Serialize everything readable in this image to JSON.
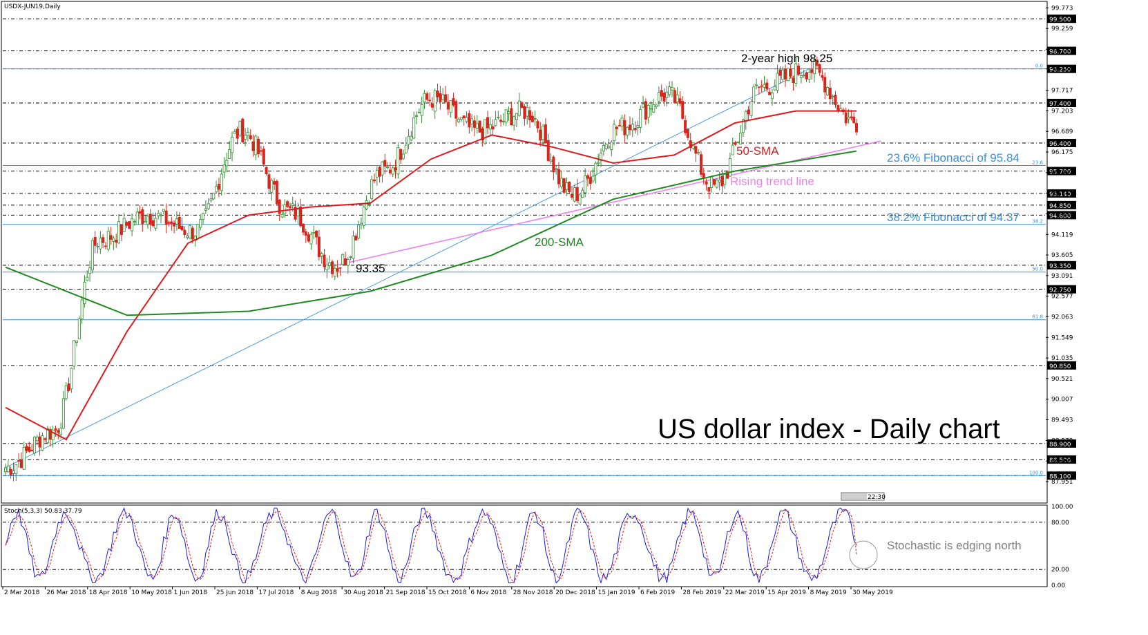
{
  "chart_data": {
    "type": "candlestick",
    "symbol_label": "USDX-JUN19,Daily",
    "title": "US dollar index - Daily chart",
    "ylim": [
      87.45,
      99.9
    ],
    "y_ticks": [
      "99.773",
      "99.259",
      "98.739",
      "98.250",
      "97.717",
      "97.203",
      "96.689",
      "96.175",
      "95.661",
      "95.147",
      "94.633",
      "94.119",
      "93.605",
      "93.091",
      "92.577",
      "92.063",
      "91.549",
      "91.035",
      "90.521",
      "90.007",
      "89.493",
      "88.979",
      "88.465",
      "87.951"
    ],
    "x_ticks": [
      "2 Mar 2018",
      "26 Mar 2018",
      "18 Apr 2018",
      "10 May 2018",
      "1 Jun 2018",
      "25 Jun 2018",
      "17 Jul 2018",
      "8 Aug 2018",
      "30 Aug 2018",
      "21 Sep 2018",
      "15 Oct 2018",
      "6 Nov 2018",
      "28 Nov 2018",
      "20 Dec 2018",
      "15 Jan 2019",
      "6 Feb 2019",
      "28 Feb 2019",
      "22 Mar 2019",
      "15 Apr 2019",
      "8 May 2019",
      "30 May 2019"
    ],
    "price_now": "96.921",
    "horizontal_levels": [
      {
        "value": 99.5,
        "label": "99.500"
      },
      {
        "value": 98.7,
        "label": "98.700"
      },
      {
        "value": 98.25,
        "label": "98.250"
      },
      {
        "value": 97.4,
        "label": "97.400"
      },
      {
        "value": 96.4,
        "label": "96.400"
      },
      {
        "value": 95.7,
        "label": "95.700"
      },
      {
        "value": 95.14,
        "label": "95.140"
      },
      {
        "value": 94.85,
        "label": "94.850"
      },
      {
        "value": 94.6,
        "label": "94.600"
      },
      {
        "value": 93.35,
        "label": "93.350"
      },
      {
        "value": 92.75,
        "label": "92.750"
      },
      {
        "value": 90.85,
        "label": "90.850"
      },
      {
        "value": 88.9,
        "label": "88.900"
      },
      {
        "value": 88.5,
        "label": "88.500"
      },
      {
        "value": 88.1,
        "label": "88.100"
      }
    ],
    "fibonacci_levels": [
      {
        "value": 98.25,
        "tag": "0.0"
      },
      {
        "value": 95.84,
        "tag": "23.6"
      },
      {
        "value": 94.37,
        "tag": "38.2"
      },
      {
        "value": 93.18,
        "tag": "50.0"
      },
      {
        "value": 91.99,
        "tag": "61.8"
      },
      {
        "value": 88.1,
        "tag": "100.0"
      }
    ],
    "key_points": [
      {
        "date": "Mar 2018",
        "value": 88.3
      },
      {
        "date": "Apr 2018",
        "value": 89.2
      },
      {
        "date": "May 2018",
        "value": 94.0
      },
      {
        "date": "Jun 2018",
        "value": 94.6
      },
      {
        "date": "Jul 2018",
        "value": 94.2
      },
      {
        "date": "Aug 2018",
        "value": 96.7
      },
      {
        "date": "Aug 2018",
        "value": 94.7
      },
      {
        "date": "Sep 2018",
        "value": 93.35
      },
      {
        "date": "Oct 2018",
        "value": 95.7
      },
      {
        "date": "Nov 2018",
        "value": 97.5
      },
      {
        "date": "Nov 2018",
        "value": 96.7
      },
      {
        "date": "Dec 2018",
        "value": 97.2
      },
      {
        "date": "Jan 2019",
        "value": 95.1
      },
      {
        "date": "Feb 2019",
        "value": 96.8
      },
      {
        "date": "Mar 2019",
        "value": 97.6
      },
      {
        "date": "Mar 2019",
        "value": 95.3
      },
      {
        "date": "Apr 2019",
        "value": 97.8
      },
      {
        "date": "May 2019",
        "value": 98.25
      },
      {
        "date": "Jun 2019",
        "value": 96.9
      }
    ],
    "sma50_points": [
      {
        "date": "Mar 2018",
        "value": 89.8
      },
      {
        "date": "Apr 2018",
        "value": 89.0
      },
      {
        "date": "Jun 2018",
        "value": 91.7
      },
      {
        "date": "Jul 2018",
        "value": 93.9
      },
      {
        "date": "Aug 2018",
        "value": 94.6
      },
      {
        "date": "Sep 2018",
        "value": 94.8
      },
      {
        "date": "Oct 2018",
        "value": 94.9
      },
      {
        "date": "Nov 2018",
        "value": 96.0
      },
      {
        "date": "Dec 2018",
        "value": 96.6
      },
      {
        "date": "Jan 2019",
        "value": 96.3
      },
      {
        "date": "Feb 2019",
        "value": 95.9
      },
      {
        "date": "Mar 2019",
        "value": 96.1
      },
      {
        "date": "Apr 2019",
        "value": 96.9
      },
      {
        "date": "May 2019",
        "value": 97.2
      },
      {
        "date": "Jun 2019",
        "value": 97.2
      }
    ],
    "sma200_points": [
      {
        "date": "Mar 2018",
        "value": 93.3
      },
      {
        "date": "May 2018",
        "value": 92.1
      },
      {
        "date": "Jul 2018",
        "value": 92.2
      },
      {
        "date": "Sep 2018",
        "value": 92.7
      },
      {
        "date": "Nov 2018",
        "value": 93.6
      },
      {
        "date": "Jan 2019",
        "value": 95.0
      },
      {
        "date": "Mar 2019",
        "value": 95.7
      },
      {
        "date": "Jun 2019",
        "value": 96.2
      }
    ],
    "uptrend_line": [
      {
        "date": "Mar 2018",
        "value": 88.3
      },
      {
        "date": "May 2019",
        "value": 98.25
      }
    ],
    "rising_trend_line": [
      {
        "date": "Sep 2018",
        "value": 93.35
      },
      {
        "date": "Jun 2019",
        "value": 96.45
      }
    ],
    "annotations": {
      "high": "2-year high 98.25",
      "low": "93.35",
      "sma50": "50-SMA",
      "sma200": "200-SMA",
      "trend": "Rising trend line",
      "fib236": "23.6% Fibonacci of 95.84",
      "fib382": "38.2% Fibonacci of 94.37"
    },
    "stochastic": {
      "label": "Stoch(5,3,3) 50.83 37.79",
      "levels": [
        "100.00",
        "80.00",
        "20.00",
        "0.00"
      ],
      "k_line": "Stochastic %K",
      "d_line": "Stochastic %D",
      "note": "Stochastic is edging north",
      "k_last": 50.83,
      "d_last": 37.79
    },
    "time_badge": "22:30"
  },
  "colors": {
    "bull": "#2e8b2e",
    "bear": "#d9251d",
    "sma50": "#e0191e",
    "sma200": "#1f8a1f",
    "trend_blue": "#4b9be0",
    "trend_pink": "#ee82ee",
    "fib_text": "#3a8fd8",
    "stoch_k": "#1a1ae0",
    "stoch_d": "#e01a1a"
  }
}
